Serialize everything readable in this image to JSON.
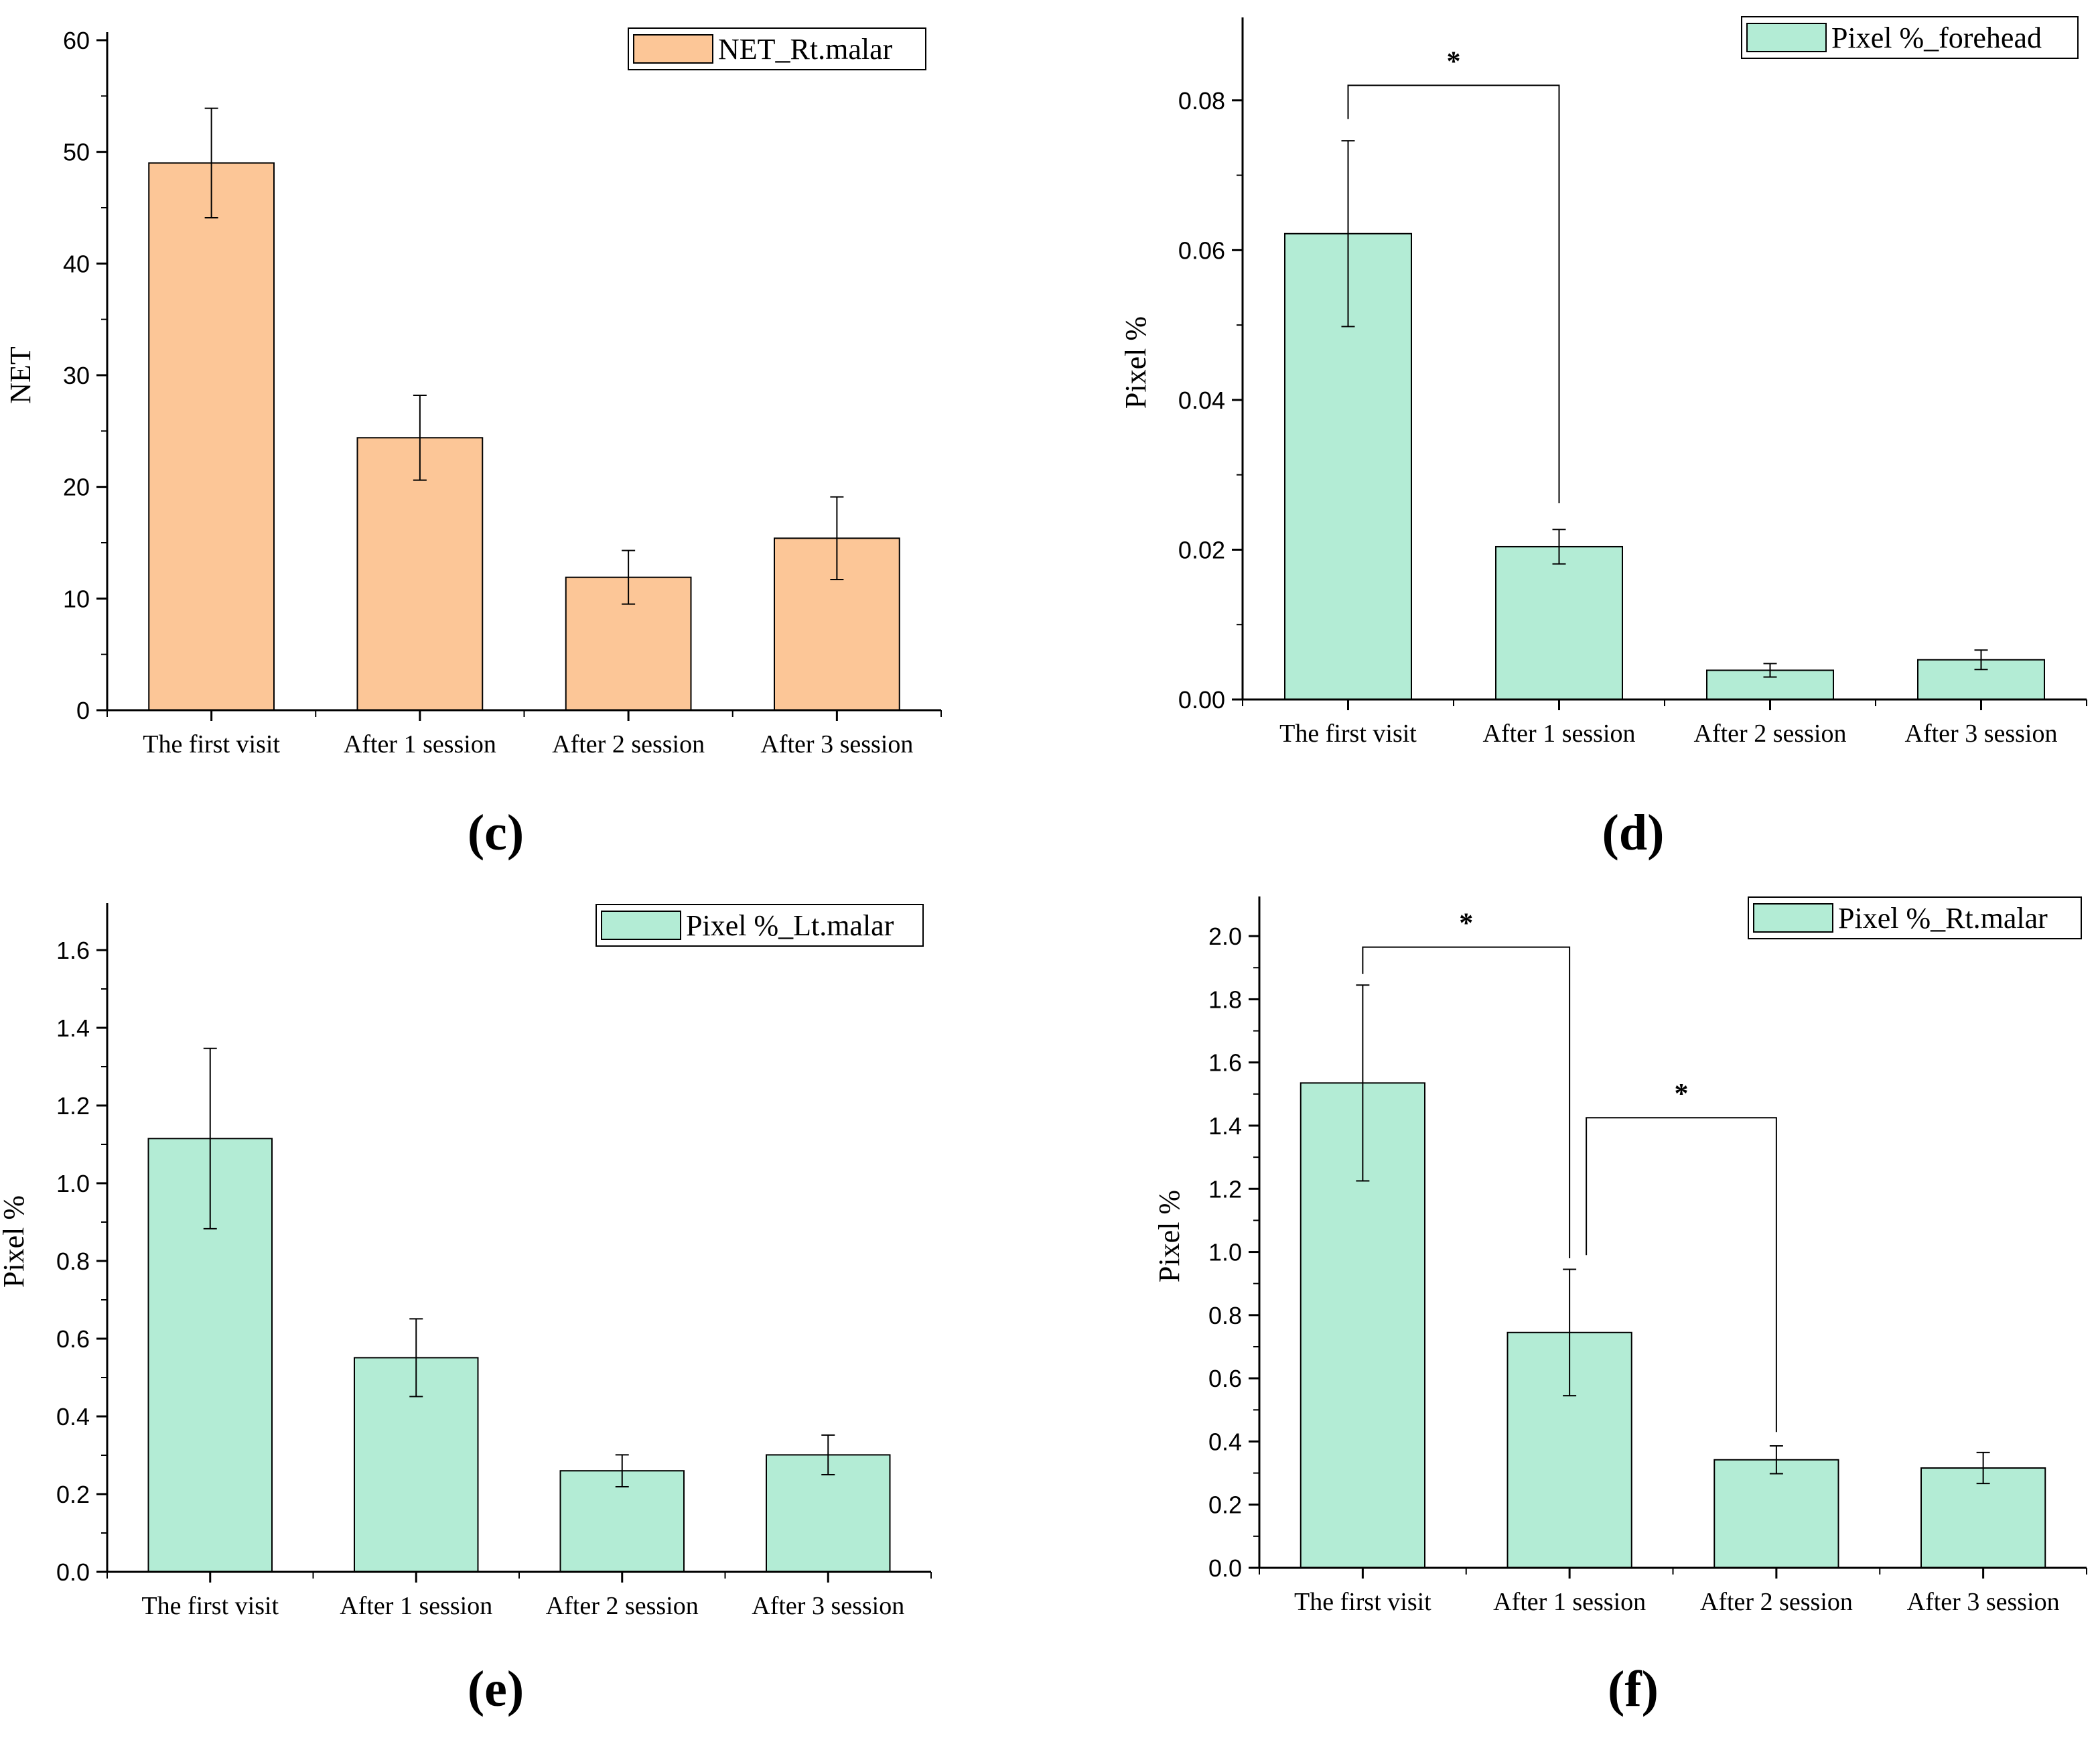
{
  "panels": [
    {
      "panel_label": "(c)",
      "chart_data": {
        "type": "bar",
        "categories": [
          "The first visit",
          "After 1 session",
          "After 2 session",
          "After 3 session"
        ],
        "values": [
          49.0,
          24.4,
          11.9,
          15.4
        ],
        "errors": [
          4.9,
          3.8,
          2.4,
          3.7
        ],
        "legend": "NET_Rt.malar",
        "ylabel": "NET",
        "xlabel": "",
        "ylim": [
          0,
          60
        ],
        "yticks": [
          "0",
          "10",
          "20",
          "30",
          "40",
          "50",
          "60"
        ],
        "yticks_values": [
          0,
          10,
          20,
          30,
          40,
          50,
          60
        ],
        "minor_ticks": true,
        "legend_position": "top-right",
        "grid": false,
        "bar_color": "#fcc697",
        "significance": []
      }
    },
    {
      "panel_label": "(d)",
      "chart_data": {
        "type": "bar",
        "categories": [
          "The first visit",
          "After 1 session",
          "After 2 session",
          "After 3 session"
        ],
        "values": [
          0.0622,
          0.0204,
          0.0039,
          0.0053
        ],
        "errors": [
          0.0124,
          0.0023,
          0.0009,
          0.0013
        ],
        "legend": "Pixel %_forehead",
        "ylabel": "Pixel %",
        "xlabel": "",
        "ylim": [
          0,
          0.09
        ],
        "yticks": [
          "0.00",
          "0.02",
          "0.04",
          "0.06",
          "0.08"
        ],
        "yticks_values": [
          0,
          0.02,
          0.04,
          0.06,
          0.08
        ],
        "minor_ticks": true,
        "legend_position": "top-right",
        "grid": false,
        "bar_color": "#b3ecd5",
        "significance": [
          {
            "from": 0,
            "to": 1,
            "level": 0.082,
            "left_end": 0.0775,
            "right_end": 0.0262,
            "label": "*"
          }
        ]
      }
    },
    {
      "panel_label": "(e)",
      "chart_data": {
        "type": "bar",
        "categories": [
          "The first visit",
          "After 1 session",
          "After 2 session",
          "After 3 session"
        ],
        "values": [
          1.115,
          0.551,
          0.26,
          0.301
        ],
        "errors": [
          0.232,
          0.1,
          0.041,
          0.051
        ],
        "legend": "Pixel %_Lt.malar",
        "ylabel": "Pixel %",
        "xlabel": "",
        "ylim": [
          0,
          1.7
        ],
        "yticks": [
          "0.0",
          "0.2",
          "0.4",
          "0.6",
          "0.8",
          "1.0",
          "1.2",
          "1.4",
          "1.6"
        ],
        "yticks_values": [
          0,
          0.2,
          0.4,
          0.6,
          0.8,
          1.0,
          1.2,
          1.4,
          1.6
        ],
        "minor_ticks": true,
        "legend_position": "top-right",
        "grid": false,
        "bar_color": "#b3ecd5",
        "significance": []
      }
    },
    {
      "panel_label": "(f)",
      "chart_data": {
        "type": "bar",
        "categories": [
          "The first visit",
          "After 1 session",
          "After 2 session",
          "After 3 session"
        ],
        "values": [
          1.535,
          0.745,
          0.342,
          0.316
        ],
        "errors": [
          0.31,
          0.2,
          0.044,
          0.049
        ],
        "legend": "Pixel %_Rt.malar",
        "ylabel": "Pixel %",
        "xlabel": "",
        "ylim": [
          0,
          2.1
        ],
        "yticks": [
          "0.0",
          "0.2",
          "0.4",
          "0.6",
          "0.8",
          "1.0",
          "1.2",
          "1.4",
          "1.6",
          "1.8",
          "2.0"
        ],
        "yticks_values": [
          0,
          0.2,
          0.4,
          0.6,
          0.8,
          1.0,
          1.2,
          1.4,
          1.6,
          1.8,
          2.0
        ],
        "minor_ticks": true,
        "legend_position": "top-right",
        "grid": false,
        "bar_color": "#b3ecd5",
        "significance": [
          {
            "from": 0,
            "to": 1,
            "level": 1.965,
            "left_end": 1.88,
            "right_end": 0.98,
            "label": "*"
          },
          {
            "from": 1,
            "to": 2,
            "level": 1.425,
            "left_end": 0.99,
            "right_end": 0.43,
            "label": "*"
          }
        ]
      }
    }
  ]
}
